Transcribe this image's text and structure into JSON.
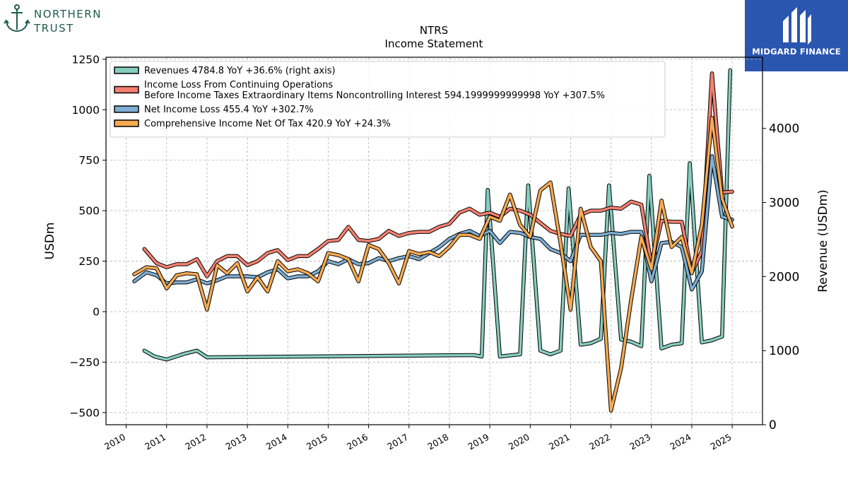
{
  "logos": {
    "left": {
      "name": "NORTHERN TRUST"
    },
    "right": {
      "name": "MIDGARD FINANCE"
    }
  },
  "chart_data": {
    "type": "line",
    "title": "NTRS",
    "subtitle": "Income Statement",
    "ylabel": "USDm",
    "ylabel_right": "Revenue (USDm)",
    "ylim": [
      -560,
      1260
    ],
    "ylim_right": [
      0,
      4960
    ],
    "yticks": [
      -500,
      -250,
      0,
      250,
      500,
      750,
      1000,
      1250
    ],
    "ytick_labels": [
      "−500",
      "−250",
      "0",
      "250",
      "500",
      "750",
      "1000",
      "1250"
    ],
    "yticks_right": [
      0,
      1000,
      2000,
      3000,
      4000
    ],
    "ytick_labels_right": [
      "0",
      "1000",
      "2000",
      "3000",
      "4000"
    ],
    "xlim": [
      2009.5,
      2025.75
    ],
    "xticks": [
      2010,
      2011,
      2012,
      2013,
      2014,
      2015,
      2016,
      2017,
      2018,
      2019,
      2020,
      2021,
      2022,
      2023,
      2024,
      2025
    ],
    "xtick_labels": [
      "2010",
      "2011",
      "2012",
      "2013",
      "2014",
      "2015",
      "2016",
      "2017",
      "2018",
      "2019",
      "2020",
      "2021",
      "2022",
      "2023",
      "2024",
      "2025"
    ],
    "grid": true,
    "legend_position": "top-left",
    "series": [
      {
        "name": "Revenues  4784.8 YoY +36.6% (right axis)",
        "color": "#86cdbf",
        "axis": "right",
        "x": [
          2010.45,
          2010.7,
          2011.0,
          2011.45,
          2011.75,
          2012.0,
          2018.6,
          2018.8,
          2018.95,
          2019.25,
          2019.75,
          2019.95,
          2020.25,
          2020.5,
          2020.75,
          2020.95,
          2021.25,
          2021.5,
          2021.75,
          2021.95,
          2022.25,
          2022.5,
          2022.75,
          2022.95,
          2023.25,
          2023.5,
          2023.75,
          2023.95,
          2024.25,
          2024.5,
          2024.75,
          2024.95
        ],
        "values": [
          1000,
          920,
          880,
          960,
          1000,
          910,
          940,
          920,
          3170,
          920,
          950,
          3230,
          1000,
          950,
          1000,
          3190,
          1080,
          1100,
          1160,
          3230,
          1150,
          1120,
          1060,
          3360,
          1030,
          1080,
          1100,
          3530,
          1110,
          1140,
          1190,
          4784.8
        ]
      },
      {
        "name": "Income Loss From Continuing Operations\nBefore Income Taxes Extraordinary Items Noncontrolling Interest  594.1999999999998 YoY +307.5%",
        "color": "#f58070",
        "axis": "left",
        "x": [
          2010.45,
          2010.75,
          2011.0,
          2011.25,
          2011.5,
          2011.75,
          2012.0,
          2012.25,
          2012.5,
          2012.75,
          2013.0,
          2013.25,
          2013.5,
          2013.75,
          2014.0,
          2014.25,
          2014.5,
          2014.75,
          2015.0,
          2015.25,
          2015.5,
          2015.75,
          2016.0,
          2016.25,
          2016.5,
          2016.75,
          2017.0,
          2017.25,
          2017.5,
          2017.75,
          2018.0,
          2018.25,
          2018.5,
          2018.75,
          2019.0,
          2019.25,
          2019.5,
          2019.75,
          2020.0,
          2020.25,
          2020.5,
          2020.75,
          2021.0,
          2021.25,
          2021.5,
          2021.75,
          2022.0,
          2022.25,
          2022.5,
          2022.75,
          2023.0,
          2023.25,
          2023.5,
          2023.75,
          2024.0,
          2024.25,
          2024.5,
          2024.75,
          2025.0
        ],
        "values": [
          310,
          240,
          220,
          235,
          235,
          260,
          175,
          250,
          275,
          275,
          230,
          250,
          290,
          305,
          255,
          275,
          275,
          310,
          350,
          355,
          420,
          355,
          350,
          360,
          400,
          375,
          390,
          395,
          395,
          420,
          435,
          490,
          510,
          480,
          490,
          470,
          510,
          500,
          480,
          440,
          400,
          385,
          375,
          480,
          500,
          500,
          515,
          510,
          545,
          530,
          230,
          450,
          445,
          445,
          195,
          300,
          1180,
          590,
          594.2
        ]
      },
      {
        "name": "Net Income Loss  455.4 YoY +302.7%",
        "color": "#7eaed3",
        "axis": "left",
        "x": [
          2010.2,
          2010.5,
          2010.75,
          2011.0,
          2011.25,
          2011.5,
          2011.75,
          2012.0,
          2012.25,
          2012.5,
          2012.75,
          2013.0,
          2013.25,
          2013.5,
          2013.75,
          2014.0,
          2014.25,
          2014.5,
          2014.75,
          2015.0,
          2015.25,
          2015.5,
          2015.75,
          2016.0,
          2016.25,
          2016.5,
          2016.75,
          2017.0,
          2017.25,
          2017.5,
          2017.75,
          2018.0,
          2018.25,
          2018.5,
          2018.75,
          2019.0,
          2019.25,
          2019.5,
          2019.75,
          2020.0,
          2020.25,
          2020.5,
          2020.75,
          2021.0,
          2021.25,
          2021.5,
          2021.75,
          2022.0,
          2022.25,
          2022.5,
          2022.75,
          2023.0,
          2023.25,
          2023.5,
          2023.75,
          2024.0,
          2024.25,
          2024.5,
          2024.75,
          2025.0
        ],
        "values": [
          150,
          195,
          180,
          140,
          145,
          145,
          160,
          140,
          155,
          175,
          175,
          175,
          170,
          195,
          210,
          165,
          175,
          175,
          200,
          250,
          235,
          260,
          235,
          240,
          265,
          250,
          265,
          275,
          260,
          290,
          320,
          360,
          385,
          400,
          375,
          400,
          340,
          395,
          390,
          370,
          360,
          310,
          290,
          250,
          380,
          380,
          380,
          390,
          385,
          395,
          395,
          150,
          340,
          345,
          320,
          110,
          200,
          770,
          470,
          455.4
        ]
      },
      {
        "name": "Comprehensive Income Net Of Tax  420.9 YoY +24.3%",
        "color": "#f6aa52",
        "axis": "left",
        "x": [
          2010.2,
          2010.5,
          2010.75,
          2011.0,
          2011.25,
          2011.5,
          2011.75,
          2012.0,
          2012.25,
          2012.5,
          2012.75,
          2013.0,
          2013.25,
          2013.5,
          2013.75,
          2014.0,
          2014.25,
          2014.5,
          2014.75,
          2015.0,
          2015.25,
          2015.5,
          2015.75,
          2016.0,
          2016.25,
          2016.5,
          2016.75,
          2017.0,
          2017.25,
          2017.5,
          2017.75,
          2018.0,
          2018.25,
          2018.5,
          2018.75,
          2019.0,
          2019.25,
          2019.5,
          2019.75,
          2020.0,
          2020.25,
          2020.5,
          2020.75,
          2021.0,
          2021.25,
          2021.5,
          2021.75,
          2022.0,
          2022.25,
          2022.5,
          2022.75,
          2023.0,
          2023.25,
          2023.5,
          2023.75,
          2024.0,
          2024.25,
          2024.5,
          2024.75,
          2025.0
        ],
        "values": [
          185,
          220,
          215,
          115,
          180,
          190,
          185,
          10,
          230,
          190,
          240,
          100,
          170,
          100,
          250,
          200,
          210,
          190,
          150,
          290,
          280,
          260,
          150,
          330,
          310,
          240,
          140,
          300,
          285,
          295,
          275,
          320,
          380,
          380,
          360,
          470,
          450,
          580,
          430,
          370,
          600,
          640,
          340,
          10,
          510,
          320,
          250,
          -490,
          -280,
          60,
          370,
          210,
          550,
          320,
          370,
          190,
          430,
          960,
          560,
          420.9
        ]
      }
    ]
  }
}
